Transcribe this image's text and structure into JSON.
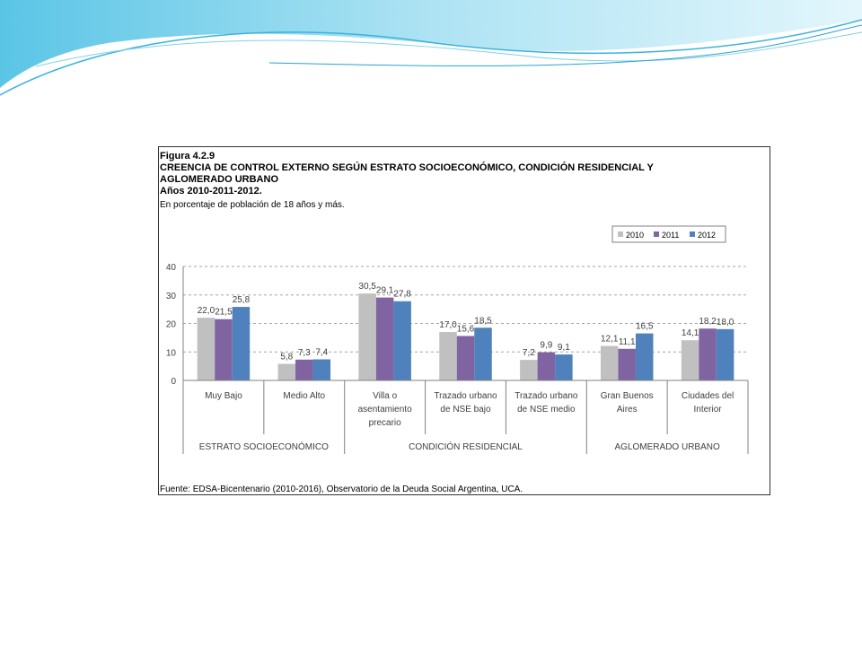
{
  "figure": {
    "number": "Figura 4.2.9",
    "title_line1": "CREENCIA DE CONTROL EXTERNO SEGÚN ESTRATO SOCIOECONÓMICO, CONDICIÓN RESIDENCIAL Y",
    "title_line2": "AGLOMERADO URBANO",
    "years": "Años 2010-2011-2012.",
    "subtitle": "En porcentaje de población de 18 años y más.",
    "source": "Fuente: EDSA-Bicentenario (2010-2016), Observatorio de la Deuda Social Argentina, UCA."
  },
  "chart_data": {
    "type": "bar",
    "title": "",
    "ylim": [
      0,
      40
    ],
    "yticks": [
      0,
      10,
      20,
      30,
      40
    ],
    "ytick_labels": [
      "0",
      "10",
      "20",
      "30",
      "40"
    ],
    "grid": true,
    "legend_position": "top-right",
    "categories": [
      [
        "Muy Bajo"
      ],
      [
        "Medio Alto"
      ],
      [
        "Villa o",
        "asentamiento",
        "precario"
      ],
      [
        "Trazado urbano",
        "de NSE bajo"
      ],
      [
        "Trazado urbano",
        "de NSE medio"
      ],
      [
        "Gran Buenos",
        "Aires"
      ],
      [
        "Ciudades del",
        "Interior"
      ]
    ],
    "groups": [
      {
        "label": "ESTRATO SOCIOECONÓMICO",
        "span": 2
      },
      {
        "label": "CONDICIÓN RESIDENCIAL",
        "span": 3
      },
      {
        "label": "AGLOMERADO URBANO",
        "span": 2
      }
    ],
    "series": [
      {
        "name": "2010",
        "color": "#c0c0c0",
        "values": [
          22.0,
          5.8,
          30.5,
          17.0,
          7.2,
          12.1,
          14.1
        ],
        "labels": [
          "22,0",
          "5,8",
          "30,5",
          "17,0",
          "7,2",
          "12,1",
          "14,1"
        ]
      },
      {
        "name": "2011",
        "color": "#8064a2",
        "values": [
          21.5,
          7.3,
          29.1,
          15.6,
          9.9,
          11.1,
          18.2
        ],
        "labels": [
          "21,5",
          "7,3",
          "29,1",
          "15,6",
          "9,9",
          "11,1",
          "18,2"
        ]
      },
      {
        "name": "2012",
        "color": "#4f81bd",
        "values": [
          25.8,
          7.4,
          27.8,
          18.5,
          9.1,
          16.5,
          18.0
        ],
        "labels": [
          "25,8",
          "7,4",
          "27,8",
          "18,5",
          "9,1",
          "16,5",
          "18,0"
        ]
      }
    ]
  }
}
